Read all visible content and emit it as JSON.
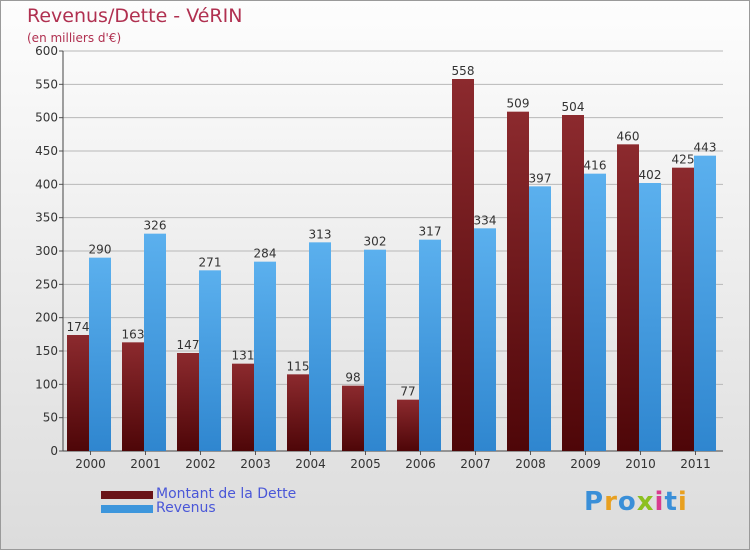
{
  "title": "Revenus/Dette - VéRIN",
  "subtitle": "(en milliers d'€)",
  "logo_text": "Proxiti",
  "chart_data": {
    "type": "bar",
    "categories": [
      "2000",
      "2001",
      "2002",
      "2003",
      "2004",
      "2005",
      "2006",
      "2007",
      "2008",
      "2009",
      "2010",
      "2011"
    ],
    "series": [
      {
        "name": "Montant de la Dette",
        "values": [
          174,
          163,
          147,
          131,
          115,
          98,
          77,
          558,
          509,
          504,
          460,
          425
        ],
        "color": "#7a1e22"
      },
      {
        "name": "Revenus",
        "values": [
          290,
          326,
          271,
          284,
          313,
          302,
          317,
          334,
          397,
          416,
          402,
          443
        ],
        "color": "#4aa0e4"
      }
    ],
    "ylim": [
      0,
      600
    ],
    "yticks": [
      0,
      50,
      100,
      150,
      200,
      250,
      300,
      350,
      400,
      450,
      500,
      550,
      600
    ],
    "grid": true,
    "legend_position": "bottom-left",
    "data_labels": true
  },
  "colors": {
    "title": "#b03050",
    "legend_text": "#4a57d8",
    "grid": "#b8b8b8"
  }
}
